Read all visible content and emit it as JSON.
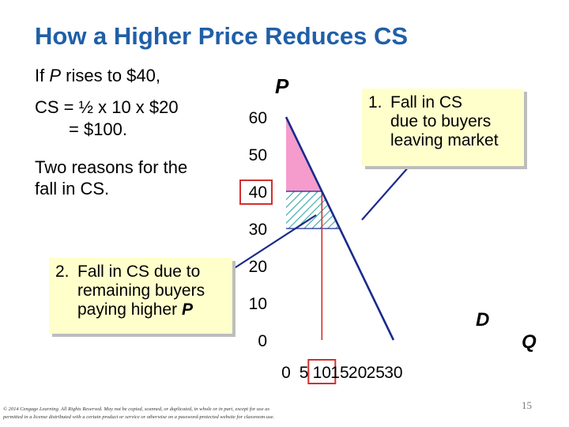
{
  "title": "How a Higher Price Reduces CS",
  "left_text": {
    "line1_prefix": "If ",
    "line1_var": "P",
    "line1_suffix": " rises to $40,",
    "cs_line1": "CS = ½ x 10 x $20",
    "cs_line2": "= $100.",
    "reasons_line1": "Two reasons for the",
    "reasons_line2": "fall in CS."
  },
  "callout1": {
    "number": "1.",
    "line1": "Fall in CS",
    "line2": "due to buyers",
    "line3": "leaving market"
  },
  "callout2": {
    "number": "2.",
    "line1": "Fall in CS due to",
    "line2": "remaining buyers",
    "line3_prefix": "paying higher ",
    "line3_var": "P"
  },
  "chart_data": {
    "type": "diagram",
    "ylabel": "P",
    "xlabel": "Q",
    "x_ticks": [
      "0",
      "5",
      "10",
      "15",
      "20",
      "25",
      "30"
    ],
    "y_ticks": [
      "0",
      "10",
      "20",
      "30",
      "40",
      "50",
      "60"
    ],
    "highlighted_x_tick": "10",
    "highlighted_y_tick": "40",
    "demand_label": "D",
    "demand_curve": [
      [
        0,
        60
      ],
      [
        30,
        0
      ]
    ],
    "price_level": 40,
    "quantity_level": 10,
    "previous_price_level": 30,
    "previous_quantity_level": 15,
    "colors": {
      "demand": "#1a2a8c",
      "cs_area": "#f59ccd",
      "hatch": "#3aa6a6",
      "highlight": "#d32f2f",
      "guide": "#1a2a8c"
    }
  },
  "footer": {
    "line1": "© 2014 Cengage Learning. All Rights Reserved. May not be copied, scanned, or duplicated, in whole or in part, except for use as",
    "line2": "permitted in a license distributed with a certain product or service or otherwise on a password-protected website for classroom use."
  },
  "page_number": "15"
}
